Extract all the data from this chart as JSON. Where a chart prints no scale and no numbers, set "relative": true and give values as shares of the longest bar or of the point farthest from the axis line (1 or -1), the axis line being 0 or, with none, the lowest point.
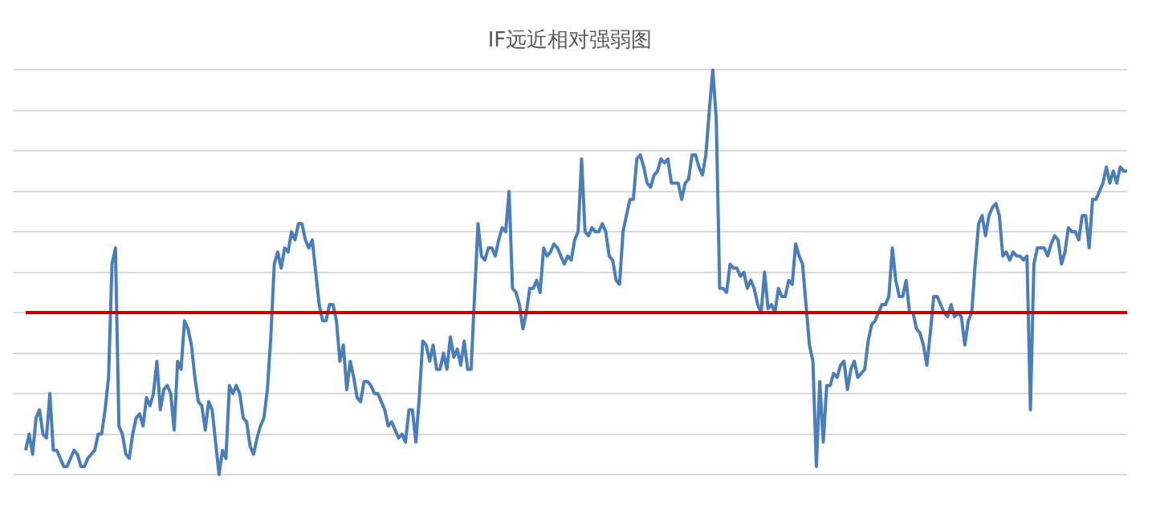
{
  "chart_data": {
    "type": "line",
    "title": "IF远近相对强弱图",
    "relative": true,
    "grid": "y",
    "categories": [
      null,
      null,
      null,
      null,
      null,
      null,
      null,
      null,
      null,
      null,
      null,
      null,
      null,
      null,
      null,
      null,
      null,
      null,
      null,
      null,
      null,
      null,
      null,
      null,
      null,
      null,
      null,
      null,
      null,
      null,
      null,
      null,
      null,
      null,
      null,
      null,
      null,
      null,
      null,
      null,
      null,
      null,
      null,
      null,
      null,
      null,
      null,
      null,
      null,
      null,
      null,
      null,
      null,
      null,
      null,
      null,
      null,
      null,
      null,
      null,
      null,
      null,
      null,
      null,
      null,
      null,
      null,
      null,
      null,
      null,
      null,
      null,
      null,
      null,
      null,
      null,
      null,
      null,
      null,
      null,
      null,
      null,
      null,
      null,
      null,
      null,
      null,
      null,
      null,
      null,
      null,
      null,
      null,
      null,
      null,
      null,
      null,
      null,
      null,
      null,
      null,
      null,
      null,
      null,
      null,
      null,
      null,
      null,
      null,
      null,
      null,
      null,
      null,
      null,
      null,
      null,
      null,
      null,
      null,
      null,
      null,
      null,
      null,
      null,
      null,
      null,
      null,
      null,
      null,
      null,
      null,
      null,
      null,
      null,
      null,
      null,
      null,
      null,
      null,
      null,
      null,
      null,
      null,
      null,
      null,
      null,
      null,
      null,
      null,
      null,
      null,
      null,
      null,
      null,
      null,
      null,
      null,
      null,
      null,
      null,
      null,
      null,
      null,
      null,
      null,
      null,
      null,
      null,
      null,
      null,
      null,
      null,
      null,
      null,
      null,
      null,
      null,
      null,
      null,
      null,
      null,
      null,
      null,
      null,
      null,
      null,
      null,
      null,
      null,
      null,
      null,
      null,
      null,
      null,
      null,
      null,
      null,
      null,
      null,
      null,
      null,
      null,
      null,
      null,
      null,
      null,
      null,
      null,
      null,
      null,
      null,
      null,
      null,
      null,
      null,
      null,
      null,
      null,
      null,
      null,
      null,
      null,
      null,
      null,
      null,
      null,
      null,
      null,
      null,
      null,
      null,
      null,
      null,
      null,
      null,
      null,
      null,
      null,
      null,
      null,
      null,
      null,
      null,
      null,
      null,
      null,
      null,
      null,
      null,
      null,
      null,
      null,
      null,
      null,
      null,
      null,
      null,
      null,
      null,
      null,
      null,
      null,
      null,
      null,
      null,
      null,
      null,
      null,
      null,
      null,
      null,
      null,
      null,
      null,
      null,
      null,
      null,
      null,
      null,
      null,
      null,
      null,
      null,
      null,
      null,
      null,
      null,
      null,
      null,
      null,
      null,
      null,
      null,
      null,
      null,
      null,
      null,
      null,
      null,
      null,
      null,
      null,
      null,
      null,
      null,
      null,
      null,
      null,
      null,
      null,
      null,
      null,
      null,
      null,
      null,
      null,
      null,
      null,
      null,
      null
    ],
    "series": [
      {
        "color": "#4a7ebb",
        "values": [
          0.06,
          0.1,
          0.05,
          0.14,
          0.16,
          0.1,
          0.09,
          0.2,
          0.06,
          0.06,
          0.04,
          0.02,
          0.02,
          0.04,
          0.06,
          0.05,
          0.02,
          0.02,
          0.04,
          0.05,
          0.06,
          0.1,
          0.1,
          0.16,
          0.24,
          0.52,
          0.56,
          0.12,
          0.1,
          0.05,
          0.04,
          0.1,
          0.14,
          0.15,
          0.12,
          0.19,
          0.17,
          0.2,
          0.28,
          0.16,
          0.21,
          0.22,
          0.2,
          0.11,
          0.28,
          0.26,
          0.38,
          0.36,
          0.32,
          0.24,
          0.18,
          0.17,
          0.11,
          0.18,
          0.16,
          0.08,
          0,
          0.06,
          0.04,
          0.22,
          0.2,
          0.22,
          0.2,
          0.14,
          0.13,
          0.07,
          0.05,
          0.09,
          0.12,
          0.14,
          0.21,
          0.34,
          0.52,
          0.55,
          0.51,
          0.56,
          0.55,
          0.6,
          0.58,
          0.62,
          0.62,
          0.58,
          0.56,
          0.58,
          0.5,
          0.42,
          0.38,
          0.38,
          0.42,
          0.42,
          0.38,
          0.28,
          0.32,
          0.21,
          0.28,
          0.24,
          0.19,
          0.18,
          0.23,
          0.23,
          0.22,
          0.2,
          0.2,
          0.18,
          0.16,
          0.12,
          0.13,
          0.11,
          0.09,
          0.1,
          0.08,
          0.16,
          0.16,
          0.08,
          0.19,
          0.33,
          0.32,
          0.28,
          0.32,
          0.26,
          0.26,
          0.3,
          0.26,
          0.34,
          0.29,
          0.31,
          0.27,
          0.33,
          0.26,
          0.26,
          0.44,
          0.62,
          0.54,
          0.53,
          0.56,
          0.56,
          0.54,
          0.58,
          0.61,
          0.6,
          0.7,
          0.46,
          0.45,
          0.42,
          0.36,
          0.4,
          0.46,
          0.46,
          0.48,
          0.45,
          0.56,
          0.54,
          0.55,
          0.57,
          0.56,
          0.54,
          0.52,
          0.54,
          0.53,
          0.58,
          0.6,
          0.78,
          0.6,
          0.59,
          0.61,
          0.6,
          0.6,
          0.62,
          0.6,
          0.54,
          0.53,
          0.48,
          0.47,
          0.6,
          0.64,
          0.68,
          0.68,
          0.78,
          0.79,
          0.76,
          0.72,
          0.71,
          0.74,
          0.75,
          0.78,
          0.77,
          0.78,
          0.72,
          0.72,
          0.72,
          0.68,
          0.72,
          0.73,
          0.79,
          0.79,
          0.76,
          0.74,
          0.79,
          0.9,
          1.0,
          0.88,
          0.46,
          0.46,
          0.45,
          0.52,
          0.51,
          0.51,
          0.49,
          0.5,
          0.46,
          0.48,
          0.46,
          0.42,
          0.4,
          0.5,
          0.41,
          0.42,
          0.4,
          0.46,
          0.44,
          0.44,
          0.48,
          0.47,
          0.57,
          0.54,
          0.52,
          0.42,
          0.32,
          0.28,
          0.02,
          0.23,
          0.08,
          0.22,
          0.22,
          0.25,
          0.24,
          0.27,
          0.28,
          0.21,
          0.26,
          0.28,
          0.24,
          0.25,
          0.26,
          0.33,
          0.37,
          0.38,
          0.4,
          0.42,
          0.42,
          0.44,
          0.56,
          0.48,
          0.44,
          0.44,
          0.48,
          0.4,
          0.4,
          0.36,
          0.35,
          0.32,
          0.27,
          0.35,
          0.44,
          0.44,
          0.42,
          0.4,
          0.39,
          0.42,
          0.39,
          0.4,
          0.39,
          0.32,
          0.38,
          0.4,
          0.52,
          0.62,
          0.64,
          0.59,
          0.64,
          0.66,
          0.67,
          0.64,
          0.54,
          0.55,
          0.53,
          0.55,
          0.54,
          0.54,
          0.53,
          0.54,
          0.16,
          0.52,
          0.56,
          0.56,
          0.56,
          0.54,
          0.57,
          0.59,
          0.58,
          0.52,
          0.55,
          0.61,
          0.6,
          0.6,
          0.58,
          0.64,
          0.64,
          0.56,
          0.68,
          0.68,
          0.7,
          0.72,
          0.76,
          0.72,
          0.75,
          0.72,
          0.76,
          0.75,
          0.75
        ]
      }
    ],
    "ref_lines": [
      {
        "axis": "y",
        "value": 0.4,
        "color": "#c00000"
      }
    ]
  }
}
